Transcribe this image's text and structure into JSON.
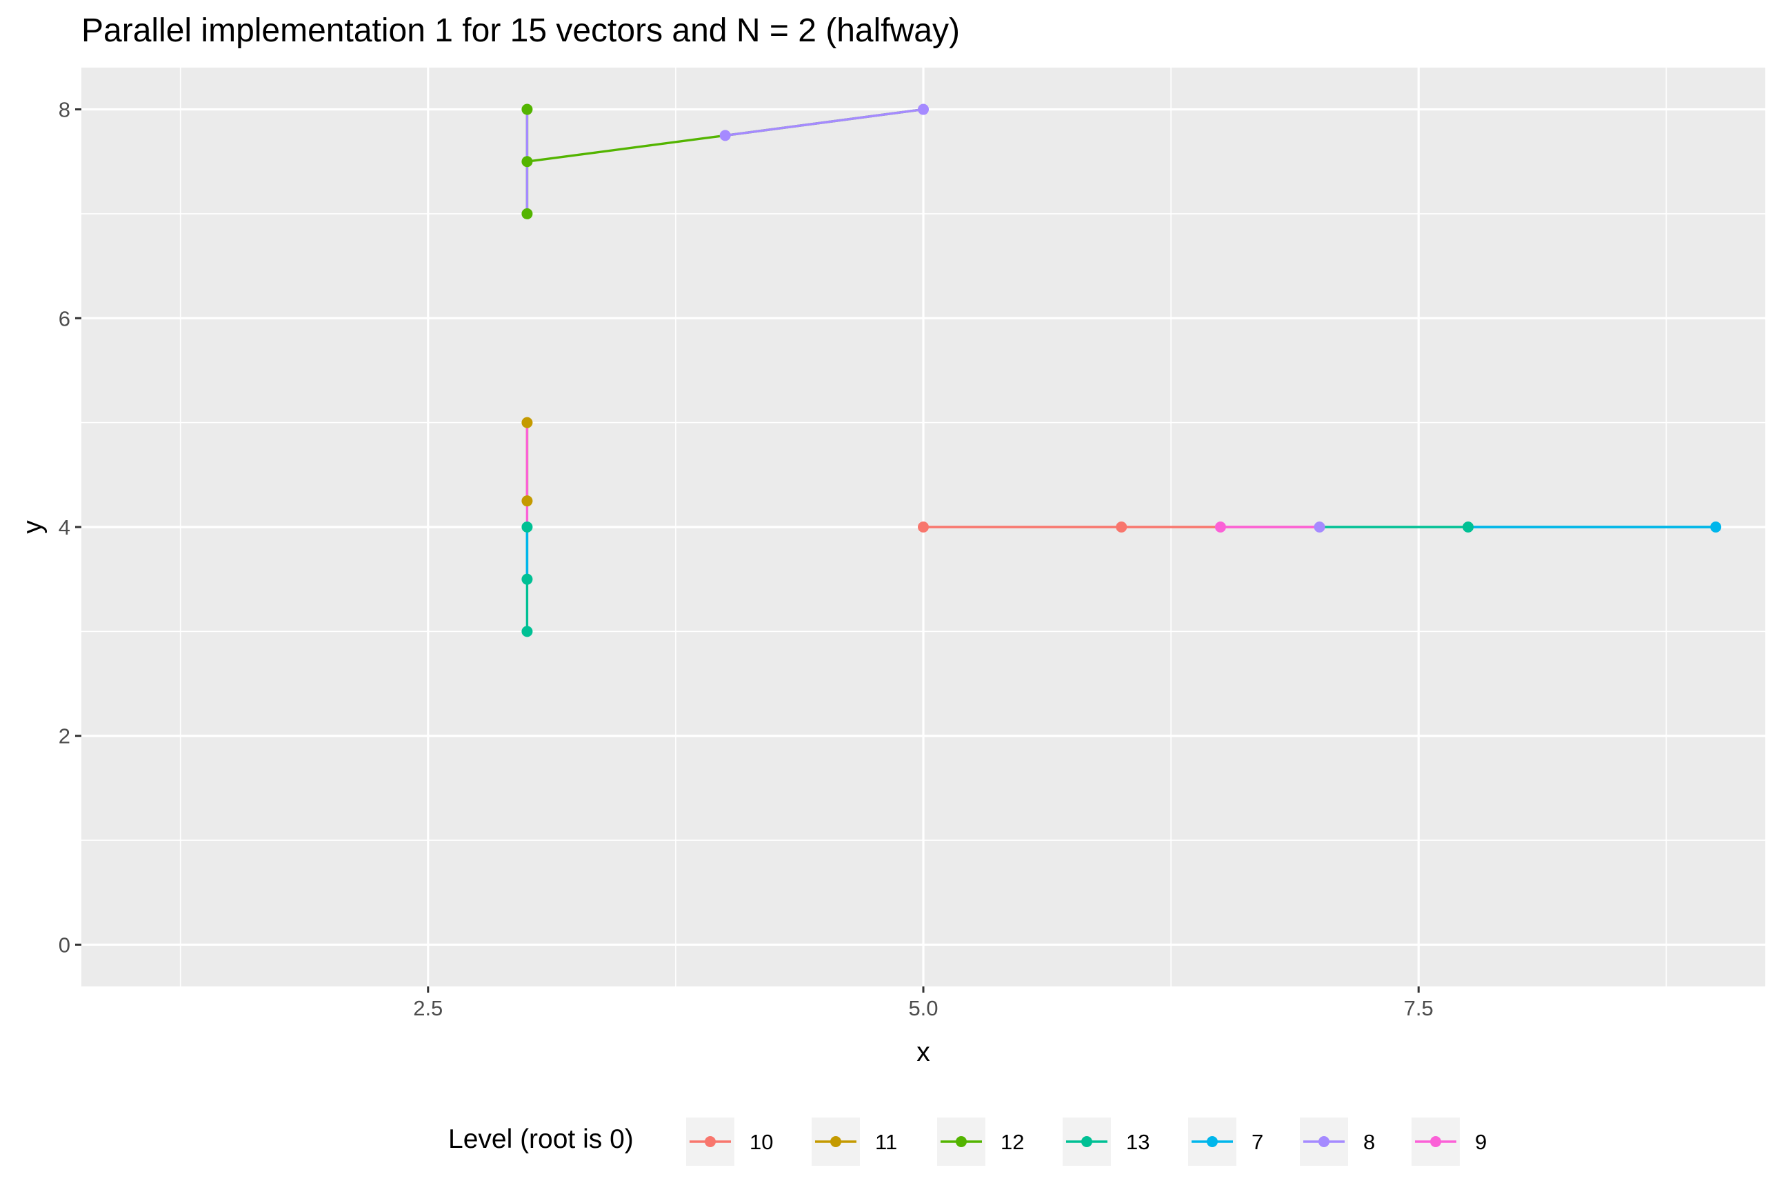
{
  "chart_data": {
    "type": "line",
    "title": "Parallel implementation 1 for 15 vectors and N = 2 (halfway)",
    "xlabel": "x",
    "ylabel": "y",
    "xlim": [
      0.75,
      9.25
    ],
    "ylim": [
      -0.4,
      8.4
    ],
    "x_ticks": [
      2.5,
      5.0,
      7.5
    ],
    "x_tick_labels": [
      "2.5",
      "5.0",
      "7.5"
    ],
    "y_ticks": [
      0,
      2,
      4,
      6,
      8
    ],
    "y_tick_labels": [
      "0",
      "2",
      "4",
      "6",
      "8"
    ],
    "grid": true,
    "legend_title": "Level (root is 0)",
    "legend_position": "bottom",
    "series": [
      {
        "name": "10",
        "color": "#F8766D",
        "segments": [
          [
            [
              5,
              4
            ],
            [
              6,
              4
            ]
          ],
          [
            [
              6,
              4
            ],
            [
              6.5,
              4
            ]
          ],
          [
            [
              6.5,
              4
            ],
            [
              7,
              4
            ]
          ]
        ]
      },
      {
        "name": "11",
        "color": "#C49A00",
        "segments": [
          [
            [
              3,
              5
            ],
            [
              3,
              4.25
            ]
          ]
        ]
      },
      {
        "name": "12",
        "color": "#53B400",
        "segments": [
          [
            [
              3,
              8
            ],
            [
              3,
              7.5
            ]
          ],
          [
            [
              3,
              7.5
            ],
            [
              3,
              7
            ]
          ],
          [
            [
              3,
              7.5
            ],
            [
              4,
              7.75
            ]
          ],
          [
            [
              4,
              7.75
            ],
            [
              5,
              8
            ]
          ]
        ]
      },
      {
        "name": "13",
        "color": "#00C094",
        "segments": [
          [
            [
              3,
              4
            ],
            [
              3,
              3.5
            ]
          ],
          [
            [
              3,
              3.5
            ],
            [
              3,
              3
            ]
          ],
          [
            [
              7,
              4
            ],
            [
              7.75,
              4
            ]
          ],
          [
            [
              7.75,
              4
            ],
            [
              9,
              4
            ]
          ]
        ]
      },
      {
        "name": "7",
        "color": "#00B6EB",
        "segments": [
          [
            [
              7.75,
              4
            ],
            [
              9,
              4
            ]
          ],
          [
            [
              3,
              4
            ],
            [
              3,
              3.5
            ]
          ]
        ]
      },
      {
        "name": "8",
        "color": "#A58AFF",
        "segments": [
          [
            [
              3,
              8
            ],
            [
              3,
              7
            ]
          ],
          [
            [
              4,
              7.75
            ],
            [
              5,
              8
            ]
          ]
        ]
      },
      {
        "name": "9",
        "color": "#FB61D7",
        "segments": [
          [
            [
              3,
              5
            ],
            [
              3,
              4
            ]
          ],
          [
            [
              6.5,
              4
            ],
            [
              7,
              4
            ]
          ]
        ]
      }
    ],
    "points": [
      {
        "series": "10",
        "x": 5,
        "y": 4
      },
      {
        "series": "10",
        "x": 6,
        "y": 4
      },
      {
        "series": "9",
        "x": 6.5,
        "y": 4
      },
      {
        "series": "8",
        "x": 7,
        "y": 4
      },
      {
        "series": "13",
        "x": 7.75,
        "y": 4
      },
      {
        "series": "7",
        "x": 9,
        "y": 4
      },
      {
        "series": "8",
        "x": 5,
        "y": 8
      },
      {
        "series": "8",
        "x": 4,
        "y": 7.75
      },
      {
        "series": "12",
        "x": 3,
        "y": 8
      },
      {
        "series": "12",
        "x": 3,
        "y": 7.5
      },
      {
        "series": "12",
        "x": 3,
        "y": 7
      },
      {
        "series": "11",
        "x": 3,
        "y": 5
      },
      {
        "series": "11",
        "x": 3,
        "y": 4.25
      },
      {
        "series": "13",
        "x": 3,
        "y": 4
      },
      {
        "series": "13",
        "x": 3,
        "y": 3.5
      },
      {
        "series": "13",
        "x": 3,
        "y": 3
      }
    ]
  }
}
